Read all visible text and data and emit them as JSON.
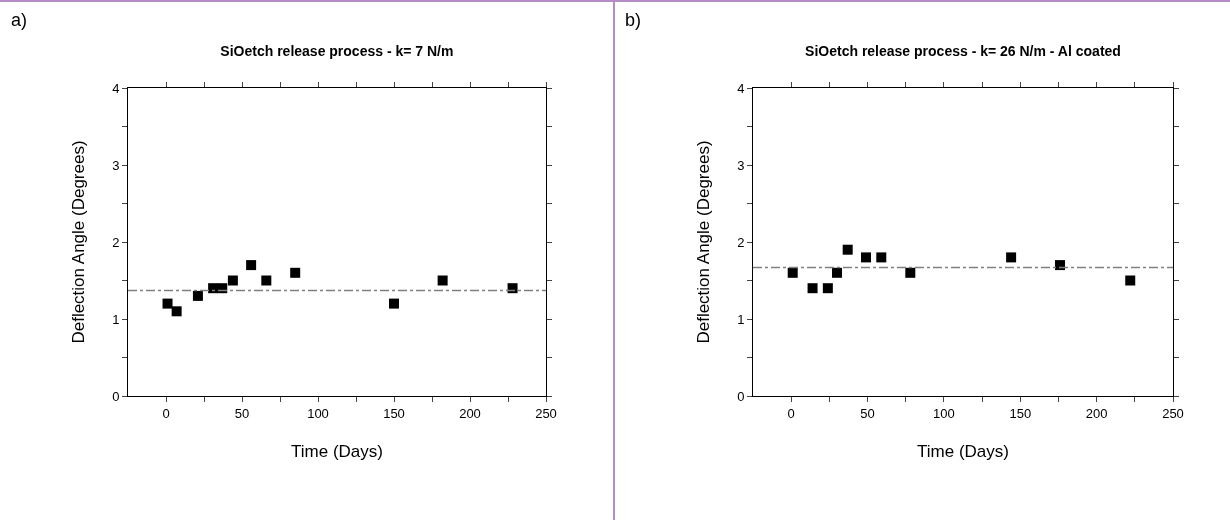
{
  "chart_data": [
    {
      "type": "scatter",
      "title": "SiOetch release process - k= 7 N/m",
      "xlabel": "Time (Days)",
      "ylabel": "Deflection Angle (Degrees)",
      "annotations": [
        "a)"
      ],
      "marker": "square",
      "x": [
        1,
        7,
        21,
        31,
        37,
        44,
        56,
        66,
        85,
        150,
        182,
        228
      ],
      "series": [
        {
          "color": "#000000",
          "values": [
            1.2,
            1.1,
            1.3,
            1.4,
            1.4,
            1.5,
            1.7,
            1.5,
            1.6,
            1.2,
            1.5,
            1.4
          ]
        }
      ],
      "xlim": [
        -25,
        250
      ],
      "xticks": [
        0,
        {
          "value": 25,
          "label": null
        },
        50,
        {
          "value": 75,
          "label": null
        },
        100,
        {
          "value": 125,
          "label": null
        },
        150,
        {
          "value": 175,
          "label": null
        },
        200,
        {
          "value": 225,
          "label": null
        },
        250
      ],
      "ylim": [
        0,
        4
      ],
      "yticks": [
        0,
        {
          "value": 0.5,
          "label": null
        },
        1,
        {
          "value": 1.5,
          "label": null
        },
        2,
        {
          "value": 2.5,
          "label": null
        },
        3,
        {
          "value": 3.5,
          "label": null
        },
        4
      ],
      "ref_lines": [
        {
          "axis": "y",
          "value": 1.37,
          "color": "#808080",
          "line_style": "dashdot"
        }
      ]
    },
    {
      "type": "scatter",
      "title": "SiOetch release process - k= 26 N/m - Al coated",
      "xlabel": "Time (Days)",
      "ylabel": "Deflection Angle (Degrees)",
      "annotations": [
        "b)"
      ],
      "marker": "square",
      "x": [
        1,
        14,
        24,
        30,
        37,
        49,
        59,
        78,
        144,
        176,
        222
      ],
      "series": [
        {
          "color": "#000000",
          "values": [
            1.6,
            1.4,
            1.4,
            1.6,
            1.9,
            1.8,
            1.8,
            1.6,
            1.8,
            1.7,
            1.5
          ]
        }
      ],
      "xlim": [
        -25,
        250
      ],
      "xticks": [
        0,
        {
          "value": 25,
          "label": null
        },
        50,
        {
          "value": 75,
          "label": null
        },
        100,
        {
          "value": 125,
          "label": null
        },
        150,
        {
          "value": 175,
          "label": null
        },
        200,
        {
          "value": 225,
          "label": null
        },
        250
      ],
      "ylim": [
        0,
        4
      ],
      "yticks": [
        0,
        {
          "value": 0.5,
          "label": null
        },
        1,
        {
          "value": 1.5,
          "label": null
        },
        2,
        {
          "value": 2.5,
          "label": null
        },
        3,
        {
          "value": 3.5,
          "label": null
        },
        4
      ],
      "ref_lines": [
        {
          "axis": "y",
          "value": 1.67,
          "color": "#808080",
          "line_style": "dashdot"
        }
      ]
    }
  ]
}
